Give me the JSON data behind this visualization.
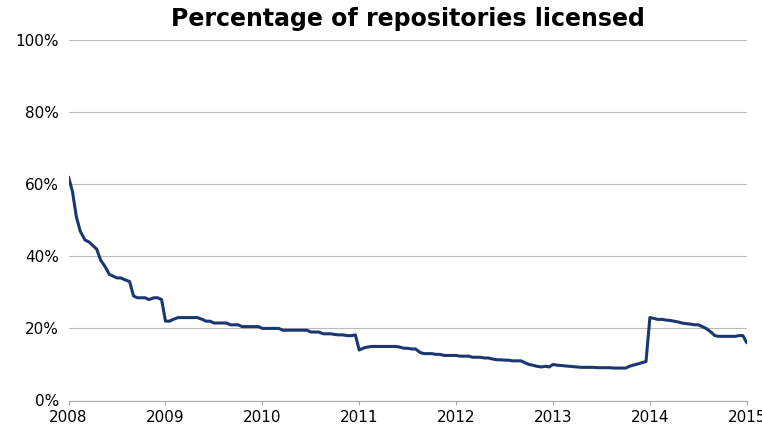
{
  "title": "Percentage of repositories licensed",
  "title_fontsize": 17,
  "title_fontweight": "bold",
  "line_color": "#1a3870",
  "line_width": 2.2,
  "background_color": "#ffffff",
  "grid_color": "#bbbbbb",
  "ylim": [
    0,
    1.0
  ],
  "yticks": [
    0.0,
    0.2,
    0.4,
    0.6,
    0.8,
    1.0
  ],
  "ytick_labels": [
    "0%",
    "20%",
    "40%",
    "60%",
    "80%",
    "100%"
  ],
  "xticks": [
    2008,
    2009,
    2010,
    2011,
    2012,
    2013,
    2014,
    2015
  ],
  "xlim": [
    2008,
    2015
  ],
  "x": [
    2008.0,
    2008.04,
    2008.08,
    2008.12,
    2008.17,
    2008.21,
    2008.25,
    2008.29,
    2008.33,
    2008.38,
    2008.42,
    2008.46,
    2008.5,
    2008.54,
    2008.58,
    2008.63,
    2008.67,
    2008.71,
    2008.75,
    2008.79,
    2008.83,
    2008.88,
    2008.92,
    2008.96,
    2009.0,
    2009.04,
    2009.08,
    2009.13,
    2009.17,
    2009.21,
    2009.25,
    2009.29,
    2009.33,
    2009.38,
    2009.42,
    2009.46,
    2009.5,
    2009.54,
    2009.58,
    2009.63,
    2009.67,
    2009.71,
    2009.75,
    2009.79,
    2009.83,
    2009.88,
    2009.92,
    2009.96,
    2010.0,
    2010.04,
    2010.08,
    2010.13,
    2010.17,
    2010.21,
    2010.25,
    2010.29,
    2010.33,
    2010.38,
    2010.42,
    2010.46,
    2010.5,
    2010.54,
    2010.58,
    2010.63,
    2010.67,
    2010.71,
    2010.75,
    2010.79,
    2010.83,
    2010.88,
    2010.92,
    2010.96,
    2011.0,
    2011.04,
    2011.08,
    2011.13,
    2011.17,
    2011.21,
    2011.25,
    2011.29,
    2011.33,
    2011.38,
    2011.42,
    2011.46,
    2011.5,
    2011.54,
    2011.58,
    2011.63,
    2011.67,
    2011.71,
    2011.75,
    2011.79,
    2011.83,
    2011.88,
    2011.92,
    2011.96,
    2012.0,
    2012.04,
    2012.08,
    2012.13,
    2012.17,
    2012.21,
    2012.25,
    2012.29,
    2012.33,
    2012.38,
    2012.42,
    2012.46,
    2012.5,
    2012.54,
    2012.58,
    2012.63,
    2012.67,
    2012.71,
    2012.75,
    2012.79,
    2012.83,
    2012.88,
    2012.92,
    2012.96,
    2013.0,
    2013.04,
    2013.08,
    2013.13,
    2013.17,
    2013.21,
    2013.25,
    2013.29,
    2013.33,
    2013.38,
    2013.42,
    2013.46,
    2013.5,
    2013.54,
    2013.58,
    2013.63,
    2013.67,
    2013.71,
    2013.75,
    2013.79,
    2013.83,
    2013.88,
    2013.92,
    2013.96,
    2014.0,
    2014.04,
    2014.08,
    2014.13,
    2014.17,
    2014.21,
    2014.25,
    2014.29,
    2014.33,
    2014.38,
    2014.42,
    2014.46,
    2014.5,
    2014.54,
    2014.58,
    2014.63,
    2014.67,
    2014.71,
    2014.75,
    2014.79,
    2014.83,
    2014.88,
    2014.92,
    2014.96,
    2015.0
  ],
  "y": [
    0.62,
    0.58,
    0.51,
    0.47,
    0.445,
    0.44,
    0.43,
    0.42,
    0.39,
    0.37,
    0.35,
    0.345,
    0.34,
    0.34,
    0.335,
    0.33,
    0.29,
    0.285,
    0.285,
    0.285,
    0.28,
    0.285,
    0.285,
    0.28,
    0.22,
    0.22,
    0.225,
    0.23,
    0.23,
    0.23,
    0.23,
    0.23,
    0.23,
    0.225,
    0.22,
    0.22,
    0.215,
    0.215,
    0.215,
    0.215,
    0.21,
    0.21,
    0.21,
    0.205,
    0.205,
    0.205,
    0.205,
    0.205,
    0.2,
    0.2,
    0.2,
    0.2,
    0.2,
    0.195,
    0.195,
    0.195,
    0.195,
    0.195,
    0.195,
    0.195,
    0.19,
    0.19,
    0.19,
    0.185,
    0.185,
    0.185,
    0.183,
    0.182,
    0.182,
    0.18,
    0.18,
    0.182,
    0.14,
    0.145,
    0.148,
    0.15,
    0.15,
    0.15,
    0.15,
    0.15,
    0.15,
    0.15,
    0.148,
    0.145,
    0.145,
    0.143,
    0.143,
    0.133,
    0.13,
    0.13,
    0.13,
    0.128,
    0.128,
    0.125,
    0.125,
    0.125,
    0.125,
    0.123,
    0.123,
    0.123,
    0.12,
    0.12,
    0.12,
    0.118,
    0.118,
    0.115,
    0.113,
    0.113,
    0.112,
    0.112,
    0.11,
    0.11,
    0.11,
    0.105,
    0.1,
    0.098,
    0.095,
    0.093,
    0.095,
    0.093,
    0.1,
    0.098,
    0.097,
    0.096,
    0.095,
    0.094,
    0.093,
    0.092,
    0.092,
    0.092,
    0.092,
    0.091,
    0.091,
    0.091,
    0.091,
    0.09,
    0.09,
    0.09,
    0.09,
    0.095,
    0.098,
    0.102,
    0.105,
    0.108,
    0.23,
    0.228,
    0.225,
    0.225,
    0.223,
    0.222,
    0.22,
    0.218,
    0.215,
    0.213,
    0.212,
    0.21,
    0.21,
    0.205,
    0.2,
    0.19,
    0.18,
    0.178,
    0.178,
    0.178,
    0.178,
    0.178,
    0.18,
    0.18,
    0.16
  ]
}
